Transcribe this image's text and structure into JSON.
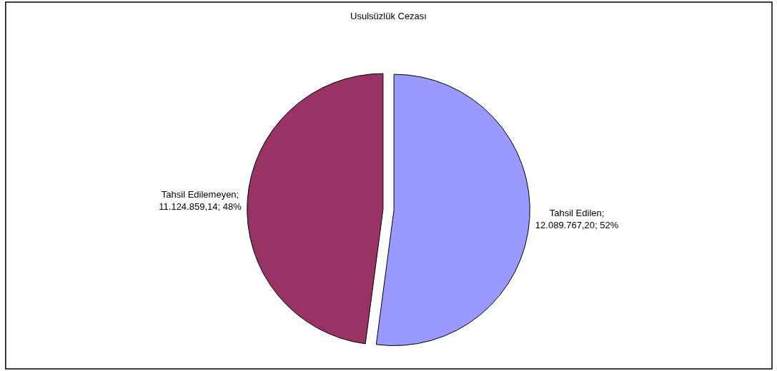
{
  "chart_data": {
    "type": "pie",
    "title": "Usulsüzlük Cezası",
    "categories": [
      null,
      null
    ],
    "values": [
      12089767.2,
      11124859.14
    ],
    "value_labels": [
      "Tahsil Edilen; 12.089.767,20; 52%",
      "Tahsil Edilemeyen; 11.124.859,14; 48%"
    ],
    "colors": [
      "#9999ff",
      "#993366"
    ]
  }
}
